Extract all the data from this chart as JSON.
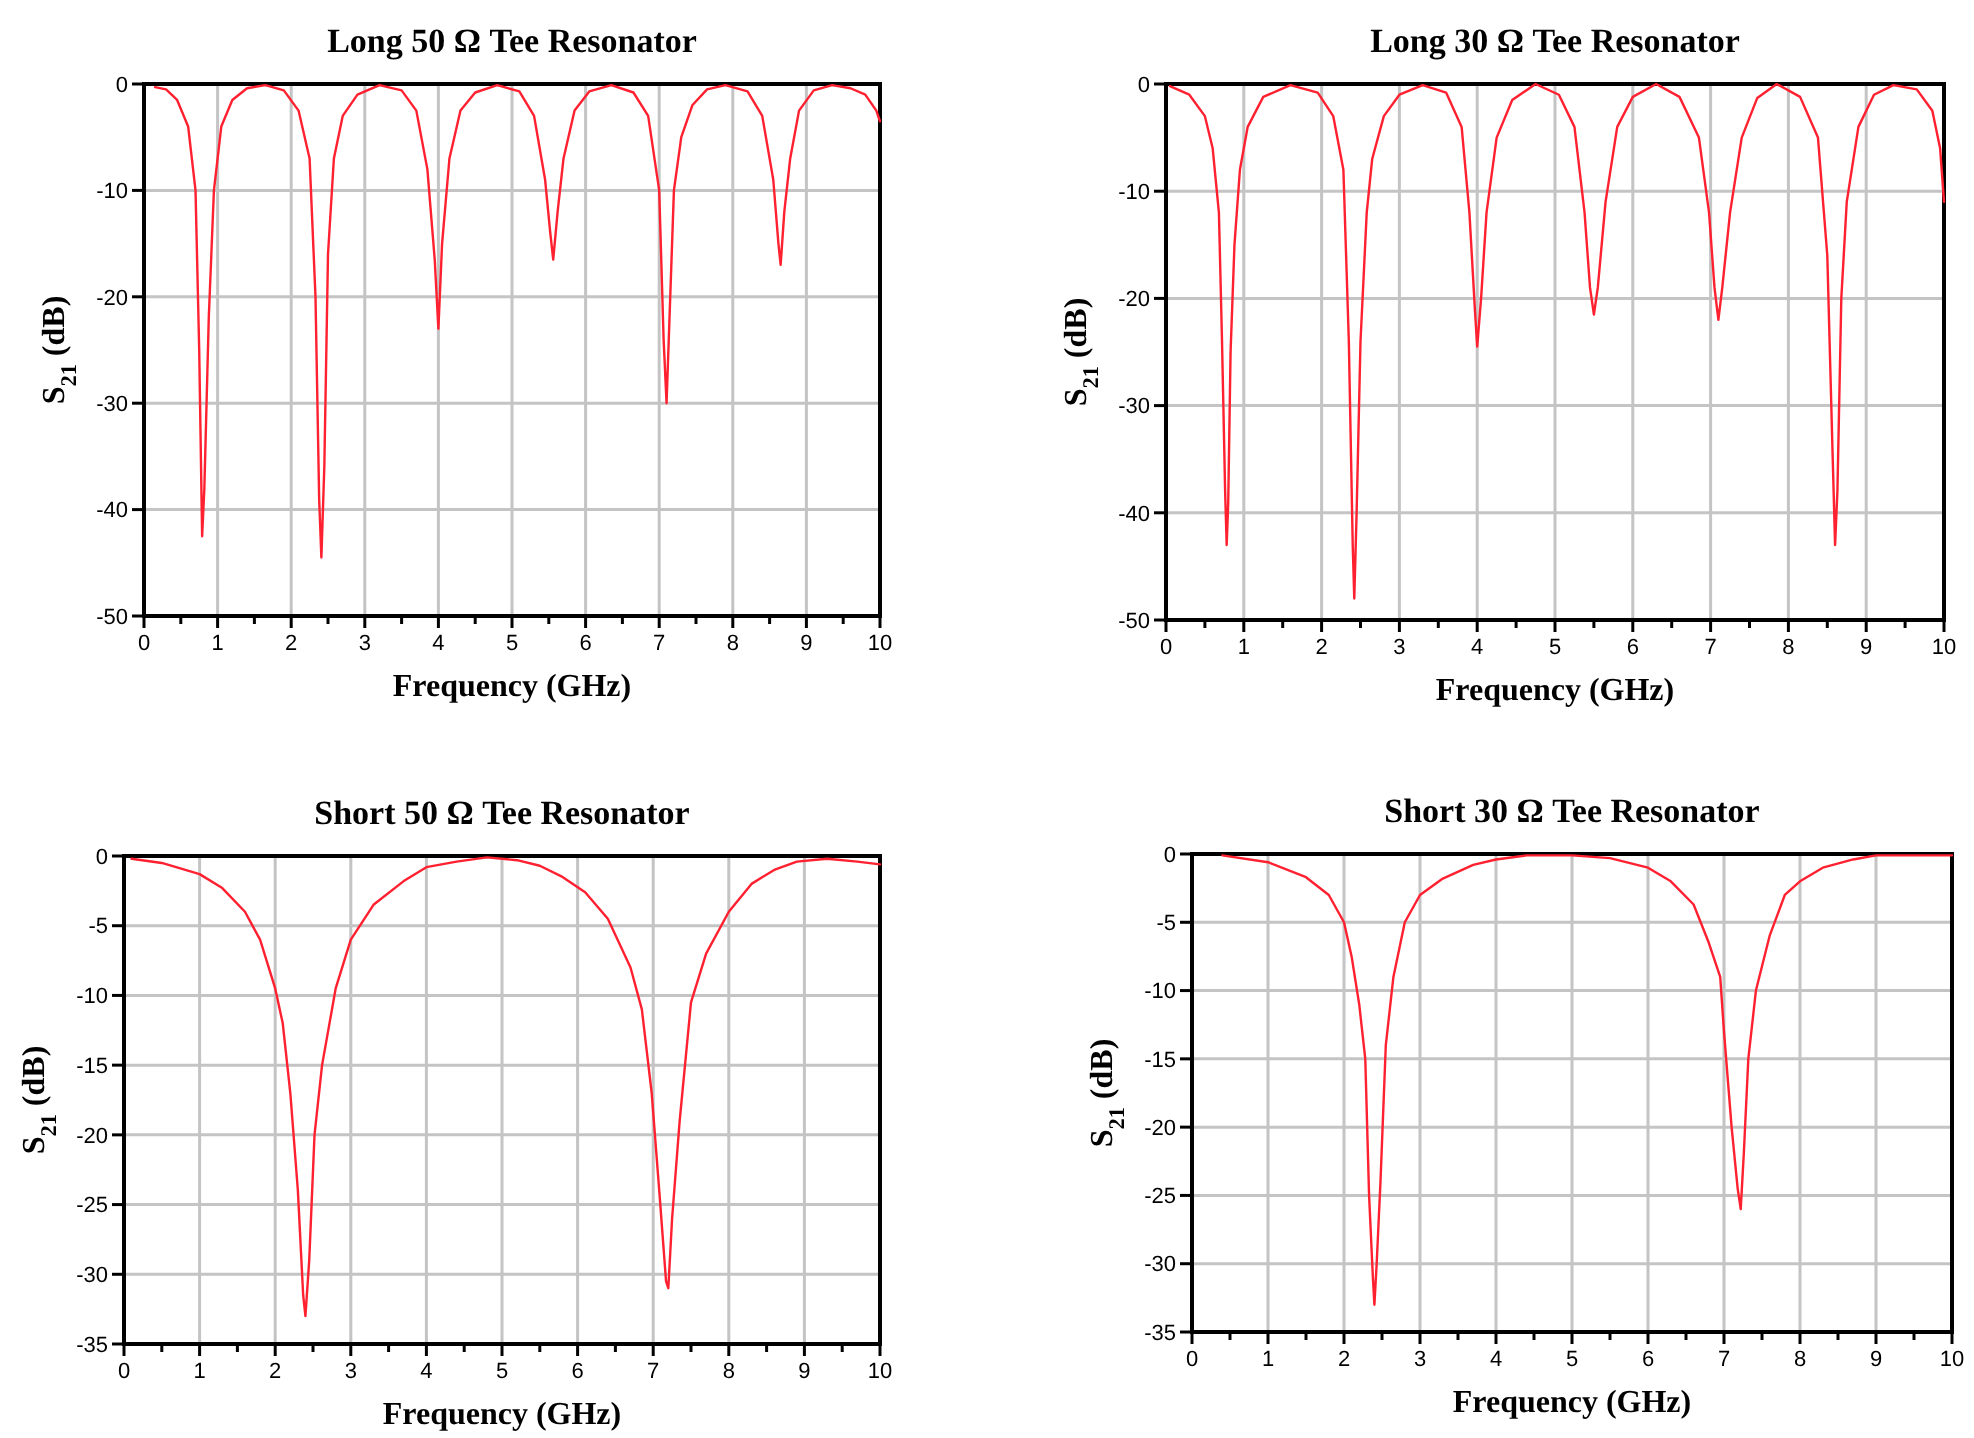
{
  "chart_data": [
    {
      "type": "line",
      "title": "Long 50 Ω Tee Resonator",
      "xlabel": "Frequency (GHz)",
      "ylabel": "S$_{21}$ (dB)",
      "xlim": [
        0,
        10
      ],
      "ylim": [
        -50,
        0
      ],
      "xticks": [
        0,
        {
          "value": 0.5,
          "label": null
        },
        1,
        {
          "value": 1.5,
          "label": null
        },
        2,
        {
          "value": 2.5,
          "label": null
        },
        3,
        {
          "value": 3.5,
          "label": null
        },
        4,
        {
          "value": 4.5,
          "label": null
        },
        5,
        {
          "value": 5.5,
          "label": null
        },
        6,
        {
          "value": 6.5,
          "label": null
        },
        7,
        {
          "value": 7.5,
          "label": null
        },
        8,
        {
          "value": 8.5,
          "label": null
        },
        9,
        {
          "value": 9.5,
          "label": null
        },
        10
      ],
      "yticks": [
        -50,
        -40,
        -30,
        -20,
        -10,
        0
      ],
      "grid": true,
      "series": [
        {
          "color": "#ff2030",
          "x": [
            0.15,
            0.3,
            0.45,
            0.6,
            0.7,
            0.75,
            0.79,
            0.82,
            0.88,
            0.95,
            1.05,
            1.2,
            1.4,
            1.65,
            1.9,
            2.1,
            2.25,
            2.33,
            2.38,
            2.41,
            2.45,
            2.5,
            2.58,
            2.7,
            2.9,
            3.2,
            3.5,
            3.7,
            3.85,
            3.95,
            4.0,
            4.05,
            4.15,
            4.3,
            4.5,
            4.8,
            5.1,
            5.3,
            5.45,
            5.52,
            5.56,
            5.62,
            5.7,
            5.85,
            6.05,
            6.35,
            6.65,
            6.85,
            7.0,
            7.06,
            7.1,
            7.14,
            7.2,
            7.3,
            7.45,
            7.65,
            7.9,
            8.2,
            8.4,
            8.55,
            8.62,
            8.65,
            8.7,
            8.78,
            8.9,
            9.1,
            9.35,
            9.6,
            9.8,
            9.95,
            10
          ],
          "values": [
            -0.3,
            -0.5,
            -1.5,
            -4,
            -10,
            -25,
            -42.5,
            -38,
            -22,
            -10,
            -4,
            -1.5,
            -0.4,
            -0.1,
            -0.6,
            -2.5,
            -7,
            -20,
            -39,
            -44.5,
            -36,
            -16,
            -7,
            -3,
            -1,
            -0.1,
            -0.6,
            -2.5,
            -8,
            -16.5,
            -23,
            -15,
            -7,
            -2.5,
            -0.8,
            -0.1,
            -0.7,
            -3,
            -9,
            -14,
            -16.5,
            -12,
            -7,
            -2.5,
            -0.7,
            -0.1,
            -0.8,
            -3,
            -10,
            -24,
            -30,
            -22,
            -10,
            -5,
            -2,
            -0.5,
            -0.1,
            -0.7,
            -3,
            -9,
            -15,
            -17,
            -12,
            -7,
            -2.5,
            -0.6,
            -0.1,
            -0.4,
            -1,
            -2.5,
            -3.5
          ]
        }
      ]
    },
    {
      "type": "line",
      "title": "Long 30 Ω Tee Resonator",
      "xlabel": "Frequency (GHz)",
      "ylabel": "S$_{21}$ (dB)",
      "xlim": [
        0,
        10
      ],
      "ylim": [
        -50,
        0
      ],
      "xticks": [
        0,
        {
          "value": 0.5,
          "label": null
        },
        1,
        {
          "value": 1.5,
          "label": null
        },
        2,
        {
          "value": 2.5,
          "label": null
        },
        3,
        {
          "value": 3.5,
          "label": null
        },
        4,
        {
          "value": 4.5,
          "label": null
        },
        5,
        {
          "value": 5.5,
          "label": null
        },
        6,
        {
          "value": 6.5,
          "label": null
        },
        7,
        {
          "value": 7.5,
          "label": null
        },
        8,
        {
          "value": 8.5,
          "label": null
        },
        9,
        {
          "value": 9.5,
          "label": null
        },
        10
      ],
      "yticks": [
        -50,
        -40,
        -30,
        -20,
        -10,
        0
      ],
      "grid": true,
      "series": [
        {
          "color": "#ff2030",
          "x": [
            0.05,
            0.3,
            0.5,
            0.6,
            0.68,
            0.72,
            0.76,
            0.78,
            0.8,
            0.83,
            0.88,
            0.95,
            1.05,
            1.25,
            1.6,
            1.95,
            2.15,
            2.28,
            2.35,
            2.4,
            2.42,
            2.45,
            2.5,
            2.58,
            2.65,
            2.8,
            3.0,
            3.3,
            3.6,
            3.8,
            3.9,
            3.97,
            4.0,
            4.05,
            4.12,
            4.25,
            4.45,
            4.75,
            5.05,
            5.25,
            5.38,
            5.45,
            5.5,
            5.55,
            5.65,
            5.8,
            6.0,
            6.3,
            6.6,
            6.85,
            6.98,
            7.05,
            7.1,
            7.15,
            7.25,
            7.4,
            7.6,
            7.85,
            8.15,
            8.38,
            8.5,
            8.57,
            8.6,
            8.63,
            8.68,
            8.75,
            8.9,
            9.1,
            9.35,
            9.65,
            9.85,
            9.95,
            10
          ],
          "values": [
            -0.2,
            -1,
            -3,
            -6,
            -12,
            -24,
            -38,
            -43,
            -39,
            -25,
            -15,
            -8,
            -4,
            -1.2,
            -0.1,
            -0.8,
            -3,
            -8,
            -24,
            -43,
            -48,
            -40,
            -24,
            -12,
            -7,
            -3,
            -1,
            -0.1,
            -0.8,
            -4,
            -12,
            -21,
            -24.5,
            -20,
            -12,
            -5,
            -1.5,
            0,
            -1,
            -4,
            -12,
            -19,
            -21.5,
            -19,
            -11,
            -4,
            -1.2,
            0,
            -1.2,
            -5,
            -12,
            -19,
            -22,
            -19,
            -12,
            -5,
            -1.3,
            0,
            -1.2,
            -5,
            -16,
            -35,
            -43,
            -38,
            -20,
            -11,
            -4,
            -1,
            -0.1,
            -0.5,
            -2.5,
            -6,
            -11
          ]
        }
      ]
    },
    {
      "type": "line",
      "title": "Short 50 Ω Tee Resonator",
      "xlabel": "Frequency (GHz)",
      "ylabel": "S$_{21}$ (dB)",
      "xlim": [
        0,
        10
      ],
      "ylim": [
        -35,
        0
      ],
      "xticks": [
        0,
        {
          "value": 0.5,
          "label": null
        },
        1,
        {
          "value": 1.5,
          "label": null
        },
        2,
        {
          "value": 2.5,
          "label": null
        },
        3,
        {
          "value": 3.5,
          "label": null
        },
        4,
        {
          "value": 4.5,
          "label": null
        },
        5,
        {
          "value": 5.5,
          "label": null
        },
        6,
        {
          "value": 6.5,
          "label": null
        },
        7,
        {
          "value": 7.5,
          "label": null
        },
        8,
        {
          "value": 8.5,
          "label": null
        },
        9,
        {
          "value": 9.5,
          "label": null
        },
        10
      ],
      "yticks": [
        -35,
        -30,
        -25,
        -20,
        -15,
        -10,
        -5,
        0
      ],
      "grid": true,
      "series": [
        {
          "color": "#ff2030",
          "x": [
            0.1,
            0.5,
            1.0,
            1.3,
            1.6,
            1.8,
            2.0,
            2.1,
            2.2,
            2.3,
            2.37,
            2.4,
            2.45,
            2.52,
            2.62,
            2.8,
            3.0,
            3.3,
            3.7,
            4.0,
            4.4,
            4.8,
            5.2,
            5.5,
            5.8,
            6.1,
            6.4,
            6.7,
            6.85,
            6.98,
            7.08,
            7.17,
            7.2,
            7.25,
            7.35,
            7.5,
            7.7,
            8.0,
            8.3,
            8.6,
            8.9,
            9.3,
            9.7,
            10
          ],
          "values": [
            -0.2,
            -0.5,
            -1.3,
            -2.3,
            -4,
            -6,
            -9.5,
            -12,
            -17,
            -24,
            -31.5,
            -33,
            -29,
            -20,
            -15,
            -9.5,
            -6,
            -3.5,
            -1.8,
            -0.8,
            -0.4,
            -0.1,
            -0.3,
            -0.7,
            -1.5,
            -2.6,
            -4.5,
            -8,
            -11,
            -17,
            -24,
            -30.5,
            -31,
            -26,
            -19,
            -10.5,
            -7,
            -4,
            -2,
            -1,
            -0.4,
            -0.2,
            -0.4,
            -0.6
          ]
        }
      ]
    },
    {
      "type": "line",
      "title": "Short 30 Ω Tee Resonator",
      "xlabel": "Frequency (GHz)",
      "ylabel": "S$_{21}$ (dB)",
      "xlim": [
        0,
        10
      ],
      "ylim": [
        -35,
        0
      ],
      "xticks": [
        0,
        {
          "value": 0.5,
          "label": null
        },
        1,
        {
          "value": 1.5,
          "label": null
        },
        2,
        {
          "value": 2.5,
          "label": null
        },
        3,
        {
          "value": 3.5,
          "label": null
        },
        4,
        {
          "value": 4.5,
          "label": null
        },
        5,
        {
          "value": 5.5,
          "label": null
        },
        6,
        {
          "value": 6.5,
          "label": null
        },
        7,
        {
          "value": 7.5,
          "label": null
        },
        8,
        {
          "value": 8.5,
          "label": null
        },
        9,
        {
          "value": 9.5,
          "label": null
        },
        10
      ],
      "yticks": [
        -35,
        -30,
        -25,
        -20,
        -15,
        -10,
        -5,
        0
      ],
      "grid": true,
      "series": [
        {
          "color": "#ff2030",
          "x": [
            0.4,
            1.0,
            1.5,
            1.8,
            2.0,
            2.1,
            2.2,
            2.28,
            2.33,
            2.38,
            2.4,
            2.43,
            2.48,
            2.55,
            2.65,
            2.8,
            3.0,
            3.3,
            3.7,
            4.0,
            4.4,
            5.0,
            5.5,
            6.0,
            6.3,
            6.6,
            6.8,
            6.95,
            7.0,
            7.1,
            7.18,
            7.22,
            7.26,
            7.32,
            7.42,
            7.6,
            7.8,
            8.0,
            8.3,
            8.7,
            9.0,
            10
          ],
          "values": [
            -0.1,
            -0.6,
            -1.7,
            -3,
            -5,
            -7.5,
            -11,
            -15,
            -25,
            -31,
            -33,
            -30,
            -24,
            -14,
            -9,
            -5,
            -3,
            -1.8,
            -0.8,
            -0.4,
            -0.1,
            -0.1,
            -0.3,
            -1,
            -2,
            -3.7,
            -6.5,
            -9,
            -13,
            -20,
            -24.5,
            -26,
            -22,
            -15,
            -10,
            -6,
            -3,
            -2,
            -1,
            -0.4,
            -0.1,
            -0.1
          ]
        }
      ]
    }
  ]
}
